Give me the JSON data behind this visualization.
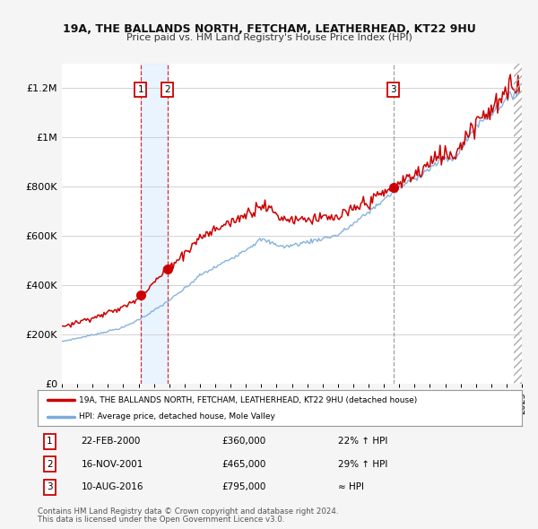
{
  "title1": "19A, THE BALLANDS NORTH, FETCHAM, LEATHERHEAD, KT22 9HU",
  "title2": "Price paid vs. HM Land Registry's House Price Index (HPI)",
  "ylabel_ticks": [
    "£0",
    "£200K",
    "£400K",
    "£600K",
    "£800K",
    "£1M",
    "£1.2M"
  ],
  "ylim": [
    0,
    1300000
  ],
  "yticks": [
    0,
    200000,
    400000,
    600000,
    800000,
    1000000,
    1200000
  ],
  "x_start_year": 1995,
  "x_end_year": 2025,
  "transaction1": {
    "date": "22-FEB-2000",
    "price": 360000,
    "hpi_rel": "22% ↑ HPI",
    "year": 2000.13
  },
  "transaction2": {
    "date": "16-NOV-2001",
    "price": 465000,
    "hpi_rel": "29% ↑ HPI",
    "year": 2001.88
  },
  "transaction3": {
    "date": "10-AUG-2016",
    "price": 795000,
    "hpi_rel": "≈ HPI",
    "year": 2016.62
  },
  "red_color": "#cc0000",
  "blue_color": "#7aabdb",
  "legend_label1": "19A, THE BALLANDS NORTH, FETCHAM, LEATHERHEAD, KT22 9HU (detached house)",
  "legend_label2": "HPI: Average price, detached house, Mole Valley",
  "footer1": "Contains HM Land Registry data © Crown copyright and database right 2024.",
  "footer2": "This data is licensed under the Open Government Licence v3.0.",
  "bg_color": "#f5f5f5",
  "plot_bg": "#ffffff",
  "shade_color": "#ddeeff"
}
